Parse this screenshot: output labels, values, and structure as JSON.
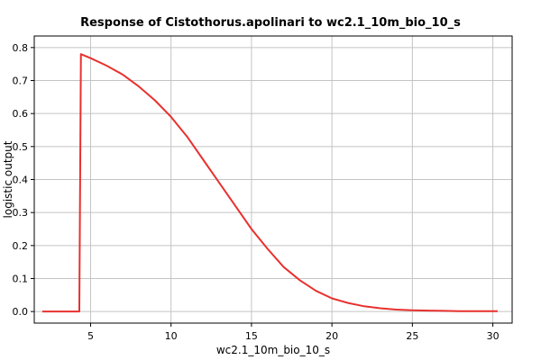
{
  "chart_data": {
    "type": "line",
    "title": "Response of Cistothorus.apolinari to wc2.1_10m_bio_10_s",
    "xlabel": "wc2.1_10m_bio_10_s",
    "ylabel": "logistic output",
    "xlim": [
      1.5,
      31.2
    ],
    "ylim": [
      -0.035,
      0.835
    ],
    "xticks": [
      5,
      10,
      15,
      20,
      25,
      30
    ],
    "yticks": [
      0.0,
      0.1,
      0.2,
      0.3,
      0.4,
      0.5,
      0.6,
      0.7,
      0.8
    ],
    "ytick_labels": [
      "0.0",
      "0.1",
      "0.2",
      "0.3",
      "0.4",
      "0.5",
      "0.6",
      "0.7",
      "0.8"
    ],
    "grid": true,
    "line_color": "#e8312f",
    "series": [
      {
        "x": [
          2.0,
          4.3,
          4.4,
          5.0,
          6.0,
          7.0,
          8.0,
          9.0,
          10.0,
          11.0,
          12.0,
          13.0,
          14.0,
          15.0,
          16.0,
          17.0,
          18.0,
          19.0,
          20.0,
          21.0,
          22.0,
          23.0,
          24.0,
          25.0,
          26.0,
          27.0,
          28.0,
          29.0,
          30.3
        ],
        "y": [
          0.0,
          0.0,
          0.78,
          0.768,
          0.745,
          0.718,
          0.682,
          0.64,
          0.59,
          0.53,
          0.46,
          0.39,
          0.32,
          0.25,
          0.19,
          0.135,
          0.095,
          0.063,
          0.04,
          0.026,
          0.016,
          0.01,
          0.006,
          0.004,
          0.003,
          0.002,
          0.001,
          0.001,
          0.001
        ]
      }
    ]
  }
}
